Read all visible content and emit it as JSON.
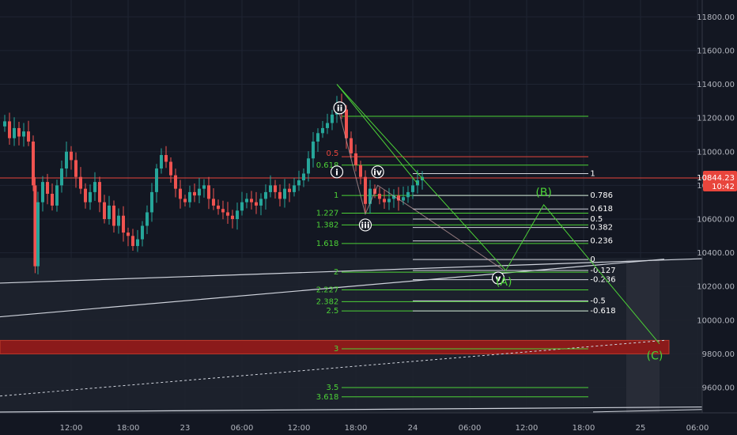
{
  "chart_data": {
    "type": "candlestick",
    "price_axis": {
      "range": [
        9450,
        11900
      ],
      "ticks": [
        9600,
        9800,
        10000,
        10200,
        10400,
        10600,
        10800,
        11000,
        11200,
        11400,
        11600,
        11800
      ],
      "tick_labels": [
        "9600.00",
        "9800.00",
        "10000.00",
        "10200.00",
        "10400.00",
        "10600.00",
        "10800.00",
        "11000.00",
        "11200.00",
        "11400.00",
        "11600.00",
        "11800.00"
      ]
    },
    "time_axis": {
      "range_hours": [
        -7.5,
        66.5
      ],
      "ticks": [
        {
          "h": 0,
          "label": "12:00"
        },
        {
          "h": 6,
          "label": "18:00"
        },
        {
          "h": 12,
          "label": "23"
        },
        {
          "h": 18,
          "label": "06:00"
        },
        {
          "h": 24,
          "label": "12:00"
        },
        {
          "h": 30,
          "label": "18:00"
        },
        {
          "h": 36,
          "label": "24"
        },
        {
          "h": 42,
          "label": "06:00"
        },
        {
          "h": 48,
          "label": "12:00"
        },
        {
          "h": 54,
          "label": "18:00"
        },
        {
          "h": 60,
          "label": "25"
        },
        {
          "h": 66,
          "label": "06:00"
        }
      ]
    },
    "last_price": {
      "value": 10844.23,
      "label": "10844.23",
      "countdown": "10:42",
      "color": "#e8453c"
    },
    "colors": {
      "up": "#26a69a",
      "down": "#ef5350",
      "fib": "#4cd137",
      "background": "#131722"
    },
    "price_path": [
      [
        -7.5,
        11150
      ],
      [
        -7,
        11180
      ],
      [
        -6.5,
        11080
      ],
      [
        -6,
        11140
      ],
      [
        -5.5,
        11090
      ],
      [
        -5,
        11120
      ],
      [
        -4.5,
        11060
      ],
      [
        -4,
        10800
      ],
      [
        -3.8,
        10320
      ],
      [
        -3.5,
        10700
      ],
      [
        -3,
        10820
      ],
      [
        -2.5,
        10750
      ],
      [
        -2,
        10680
      ],
      [
        -1.5,
        10800
      ],
      [
        -1,
        10900
      ],
      [
        -0.5,
        11000
      ],
      [
        0,
        10950
      ],
      [
        0.5,
        10850
      ],
      [
        1,
        10780
      ],
      [
        1.5,
        10700
      ],
      [
        2,
        10760
      ],
      [
        2.5,
        10820
      ],
      [
        3,
        10700
      ],
      [
        3.5,
        10600
      ],
      [
        4,
        10680
      ],
      [
        4.5,
        10560
      ],
      [
        5,
        10620
      ],
      [
        5.5,
        10520
      ],
      [
        6,
        10500
      ],
      [
        6.5,
        10440
      ],
      [
        7,
        10480
      ],
      [
        7.5,
        10560
      ],
      [
        8,
        10640
      ],
      [
        8.5,
        10760
      ],
      [
        9,
        10900
      ],
      [
        9.5,
        10980
      ],
      [
        10,
        10940
      ],
      [
        10.5,
        10860
      ],
      [
        11,
        10780
      ],
      [
        11.5,
        10720
      ],
      [
        12,
        10700
      ],
      [
        12.5,
        10760
      ],
      [
        13,
        10740
      ],
      [
        13.5,
        10780
      ],
      [
        14,
        10800
      ],
      [
        14.5,
        10720
      ],
      [
        15,
        10680
      ],
      [
        15.5,
        10660
      ],
      [
        16,
        10640
      ],
      [
        16.5,
        10620
      ],
      [
        17,
        10600
      ],
      [
        17.5,
        10650
      ],
      [
        18,
        10700
      ],
      [
        18.5,
        10720
      ],
      [
        19,
        10700
      ],
      [
        19.5,
        10680
      ],
      [
        20,
        10720
      ],
      [
        20.5,
        10760
      ],
      [
        21,
        10800
      ],
      [
        21.5,
        10760
      ],
      [
        22,
        10720
      ],
      [
        22.5,
        10780
      ],
      [
        23,
        10760
      ],
      [
        23.5,
        10800
      ],
      [
        24,
        10830
      ],
      [
        24.5,
        10870
      ],
      [
        25,
        10960
      ],
      [
        25.5,
        11060
      ],
      [
        26,
        11110
      ],
      [
        26.5,
        11140
      ],
      [
        27,
        11170
      ],
      [
        27.5,
        11220
      ],
      [
        28,
        11290
      ],
      [
        28.5,
        11250
      ],
      [
        29,
        11080
      ],
      [
        29.5,
        10990
      ],
      [
        30,
        10920
      ],
      [
        30.5,
        10850
      ],
      [
        31,
        10690
      ],
      [
        31.5,
        10780
      ],
      [
        32,
        10750
      ],
      [
        32.5,
        10720
      ],
      [
        33,
        10700
      ],
      [
        33.5,
        10720
      ],
      [
        34,
        10740
      ],
      [
        34.5,
        10710
      ],
      [
        35,
        10730
      ],
      [
        35.5,
        10760
      ],
      [
        36,
        10800
      ],
      [
        36.5,
        10830
      ],
      [
        37,
        10850
      ]
    ],
    "fib_left": [
      {
        "label": "0.5",
        "price": 10990,
        "color": "#e8453c"
      },
      {
        "label": "0.618",
        "price": 10920,
        "color": "#4cd137"
      },
      {
        "label": "1",
        "price": 10740,
        "color": "#4cd137"
      },
      {
        "label": "1.227",
        "price": 10635,
        "color": "#4cd137"
      },
      {
        "label": "1.382",
        "price": 10565,
        "color": "#4cd137"
      },
      {
        "label": "1.618",
        "price": 10455,
        "color": "#4cd137"
      },
      {
        "label": "2",
        "price": 10285,
        "color": "#4cd137"
      },
      {
        "label": "2.227",
        "price": 10180,
        "color": "#4cd137"
      },
      {
        "label": "2.382",
        "price": 10110,
        "color": "#4cd137"
      },
      {
        "label": "2.5",
        "price": 10055,
        "color": "#4cd137"
      },
      {
        "label": "3",
        "price": 9830,
        "color": "#4cd137"
      },
      {
        "label": "3.5",
        "price": 9600,
        "color": "#4cd137"
      },
      {
        "label": "3.618",
        "price": 9545,
        "color": "#4cd137"
      }
    ],
    "fib_right": [
      {
        "label": "1",
        "price": 10870
      },
      {
        "label": "0.786",
        "price": 10740
      },
      {
        "label": "0.618",
        "price": 10660
      },
      {
        "label": "0.5",
        "price": 10600
      },
      {
        "label": "0.382",
        "price": 10550
      },
      {
        "label": "0.236",
        "price": 10470
      },
      {
        "label": "0",
        "price": 10360
      },
      {
        "label": "-0.127",
        "price": 10295
      },
      {
        "label": "-0.236",
        "price": 10240
      },
      {
        "label": "-0.5",
        "price": 10115
      },
      {
        "label": "-0.618",
        "price": 10055
      }
    ],
    "wave_labels": [
      {
        "text": "i",
        "h": 28,
        "p": 10880,
        "circled": true
      },
      {
        "text": "ii",
        "h": 28.3,
        "p": 11260,
        "circled": true
      },
      {
        "text": "iii",
        "h": 31,
        "p": 10565,
        "circled": true
      },
      {
        "text": "iv",
        "h": 32.3,
        "p": 10880,
        "circled": true
      },
      {
        "text": "v",
        "h": 45,
        "p": 10250,
        "circled": true
      },
      {
        "text": "(A)",
        "h": 45.6,
        "p": 10230,
        "circled": false
      },
      {
        "text": "(B)",
        "h": 49.8,
        "p": 10760,
        "circled": false
      },
      {
        "text": "(C)",
        "h": 61.5,
        "p": 9790,
        "circled": false
      }
    ]
  }
}
